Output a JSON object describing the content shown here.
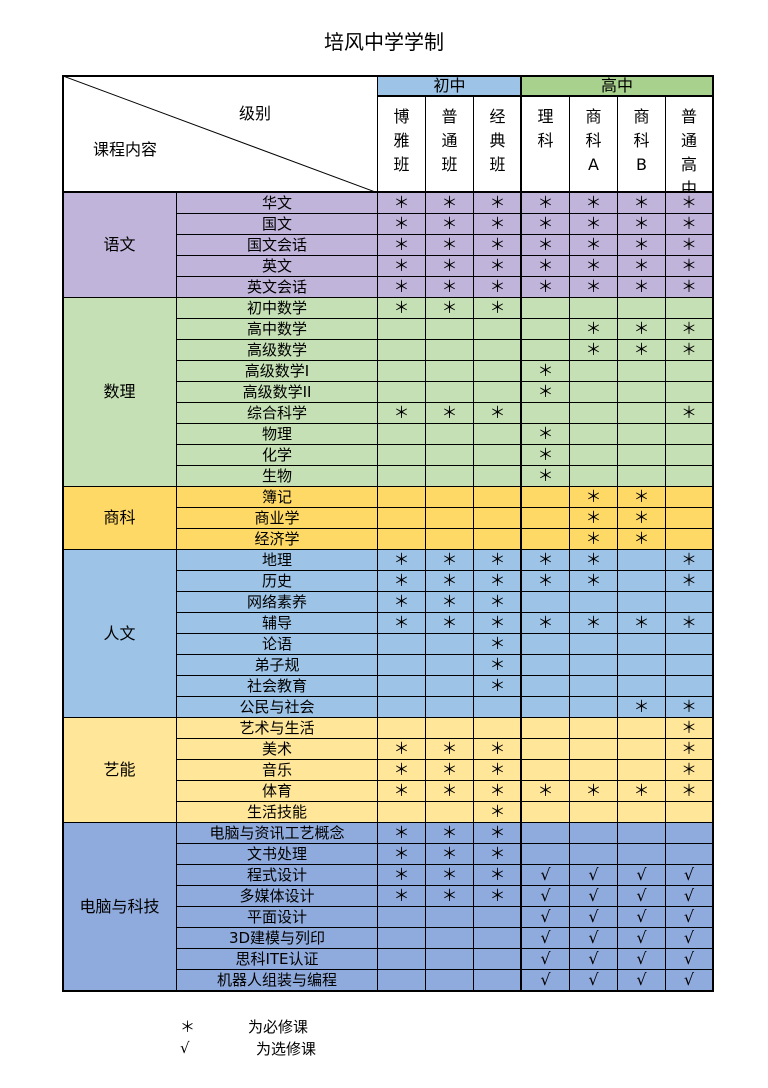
{
  "title": "培风中学学制",
  "header": {
    "corner_top": "级别",
    "corner_bottom": "课程内容",
    "groups": [
      {
        "label": "初中",
        "color": "#9dc3e6"
      },
      {
        "label": "高中",
        "color": "#a9d18e"
      }
    ],
    "columns": [
      "博雅班",
      "普通班",
      "经典班",
      "理科",
      "商科A",
      "商科B",
      "普通高中"
    ]
  },
  "symbols": {
    "required": "＊",
    "elective": "√"
  },
  "categories": [
    {
      "name": "语文",
      "cat_color": "#c0b4da",
      "row_color": "#c0b4da",
      "courses": [
        {
          "name": "华文",
          "marks": [
            "＊",
            "＊",
            "＊",
            "＊",
            "＊",
            "＊",
            "＊"
          ]
        },
        {
          "name": "国文",
          "marks": [
            "＊",
            "＊",
            "＊",
            "＊",
            "＊",
            "＊",
            "＊"
          ]
        },
        {
          "name": "国文会话",
          "marks": [
            "＊",
            "＊",
            "＊",
            "＊",
            "＊",
            "＊",
            "＊"
          ]
        },
        {
          "name": "英文",
          "marks": [
            "＊",
            "＊",
            "＊",
            "＊",
            "＊",
            "＊",
            "＊"
          ]
        },
        {
          "name": "英文会话",
          "marks": [
            "＊",
            "＊",
            "＊",
            "＊",
            "＊",
            "＊",
            "＊"
          ]
        }
      ]
    },
    {
      "name": "数理",
      "cat_color": "#c5e0b4",
      "row_color": "#c5e0b4",
      "courses": [
        {
          "name": "初中数学",
          "marks": [
            "＊",
            "＊",
            "＊",
            "",
            "",
            "",
            ""
          ]
        },
        {
          "name": "高中数学",
          "marks": [
            "",
            "",
            "",
            "",
            "＊",
            "＊",
            "＊"
          ]
        },
        {
          "name": "高级数学",
          "marks": [
            "",
            "",
            "",
            "",
            "＊",
            "＊",
            "＊"
          ]
        },
        {
          "name": "高级数学I",
          "marks": [
            "",
            "",
            "",
            "＊",
            "",
            "",
            ""
          ]
        },
        {
          "name": "高级数学II",
          "marks": [
            "",
            "",
            "",
            "＊",
            "",
            "",
            ""
          ]
        },
        {
          "name": "综合科学",
          "marks": [
            "＊",
            "＊",
            "＊",
            "",
            "",
            "",
            "＊"
          ]
        },
        {
          "name": "物理",
          "marks": [
            "",
            "",
            "",
            "＊",
            "",
            "",
            ""
          ]
        },
        {
          "name": "化学",
          "marks": [
            "",
            "",
            "",
            "＊",
            "",
            "",
            ""
          ]
        },
        {
          "name": "生物",
          "marks": [
            "",
            "",
            "",
            "＊",
            "",
            "",
            ""
          ]
        }
      ]
    },
    {
      "name": "商科",
      "cat_color": "#ffd966",
      "row_color": "#ffd966",
      "courses": [
        {
          "name": "簿记",
          "marks": [
            "",
            "",
            "",
            "",
            "＊",
            "＊",
            ""
          ]
        },
        {
          "name": "商业学",
          "marks": [
            "",
            "",
            "",
            "",
            "＊",
            "＊",
            ""
          ]
        },
        {
          "name": "经济学",
          "marks": [
            "",
            "",
            "",
            "",
            "＊",
            "＊",
            ""
          ]
        }
      ]
    },
    {
      "name": "人文",
      "cat_color": "#9dc3e6",
      "row_color": "#9dc3e6",
      "courses": [
        {
          "name": "地理",
          "marks": [
            "＊",
            "＊",
            "＊",
            "＊",
            "＊",
            "",
            "＊"
          ]
        },
        {
          "name": "历史",
          "marks": [
            "＊",
            "＊",
            "＊",
            "＊",
            "＊",
            "",
            "＊"
          ]
        },
        {
          "name": "网络素养",
          "marks": [
            "＊",
            "＊",
            "＊",
            "",
            "",
            "",
            ""
          ]
        },
        {
          "name": "辅导",
          "marks": [
            "＊",
            "＊",
            "＊",
            "＊",
            "＊",
            "＊",
            "＊"
          ]
        },
        {
          "name": "论语",
          "marks": [
            "",
            "",
            "＊",
            "",
            "",
            "",
            ""
          ]
        },
        {
          "name": "弟子规",
          "marks": [
            "",
            "",
            "＊",
            "",
            "",
            "",
            ""
          ]
        },
        {
          "name": "社会教育",
          "marks": [
            "",
            "",
            "＊",
            "",
            "",
            "",
            ""
          ]
        },
        {
          "name": "公民与社会",
          "marks": [
            "",
            "",
            "",
            "",
            "",
            "＊",
            "＊"
          ]
        }
      ]
    },
    {
      "name": "艺能",
      "cat_color": "#ffe699",
      "row_color": "#ffe699",
      "courses": [
        {
          "name": "艺术与生活",
          "marks": [
            "",
            "",
            "",
            "",
            "",
            "",
            "＊"
          ]
        },
        {
          "name": "美术",
          "marks": [
            "＊",
            "＊",
            "＊",
            "",
            "",
            "",
            "＊"
          ]
        },
        {
          "name": "音乐",
          "marks": [
            "＊",
            "＊",
            "＊",
            "",
            "",
            "",
            "＊"
          ]
        },
        {
          "name": "体育",
          "marks": [
            "＊",
            "＊",
            "＊",
            "＊",
            "＊",
            "＊",
            "＊"
          ]
        },
        {
          "name": "生活技能",
          "marks": [
            "",
            "",
            "＊",
            "",
            "",
            "",
            ""
          ]
        }
      ]
    },
    {
      "name": "电脑与科技",
      "cat_color": "#8faadc",
      "row_color": "#8faadc",
      "courses": [
        {
          "name": "电脑与资讯工艺概念",
          "marks": [
            "＊",
            "＊",
            "＊",
            "",
            "",
            "",
            ""
          ]
        },
        {
          "name": "文书处理",
          "marks": [
            "＊",
            "＊",
            "＊",
            "",
            "",
            "",
            ""
          ]
        },
        {
          "name": "程式设计",
          "marks": [
            "＊",
            "＊",
            "＊",
            "√",
            "√",
            "√",
            "√"
          ]
        },
        {
          "name": "多媒体设计",
          "marks": [
            "＊",
            "＊",
            "＊",
            "√",
            "√",
            "√",
            "√"
          ]
        },
        {
          "name": "平面设计",
          "marks": [
            "",
            "",
            "",
            "√",
            "√",
            "√",
            "√"
          ]
        },
        {
          "name": "3D建模与列印",
          "marks": [
            "",
            "",
            "",
            "√",
            "√",
            "√",
            "√"
          ]
        },
        {
          "name": "思科ITE认证",
          "marks": [
            "",
            "",
            "",
            "√",
            "√",
            "√",
            "√"
          ]
        },
        {
          "name": "机器人组装与编程",
          "marks": [
            "",
            "",
            "",
            "√",
            "√",
            "√",
            "√"
          ]
        }
      ]
    }
  ],
  "legend": [
    {
      "symbol": "＊",
      "text": "为必修课"
    },
    {
      "symbol": "√",
      "text": "为选修课"
    }
  ]
}
